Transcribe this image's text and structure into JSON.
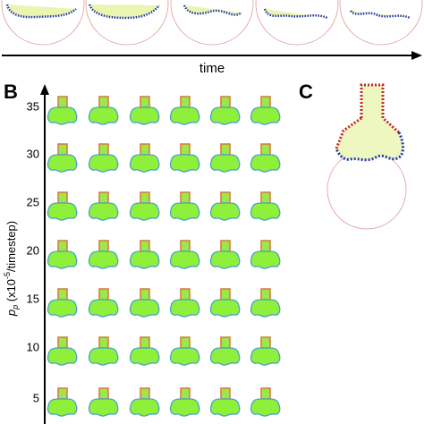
{
  "panel_a": {
    "axis_label": "time"
  },
  "panel_b": {
    "label": "B",
    "axis_label": {
      "symbol": "p",
      "subscript": "p",
      "unit_start": " (x10",
      "unit_exponent": "-5",
      "unit_end": "/timestep)"
    },
    "ticks": [
      35,
      30,
      25,
      20,
      15,
      10,
      5
    ]
  },
  "panel_c": {
    "label": "C"
  }
}
